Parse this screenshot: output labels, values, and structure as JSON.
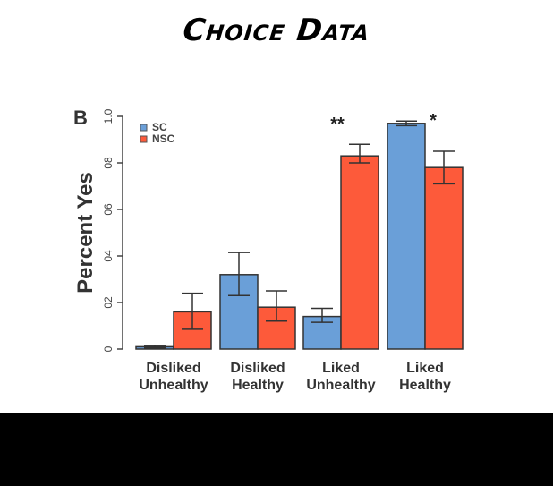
{
  "title": "Choice Data",
  "panel_label": "B",
  "chart_data": {
    "type": "bar",
    "title": "Choice Data",
    "xlabel": "",
    "ylabel": "Percent Yes",
    "ylim": [
      0,
      1.0
    ],
    "yticks": [
      "0",
      "0.2",
      "0.4",
      "0.6",
      "0.8",
      "1.0"
    ],
    "ytick_values": [
      0,
      0.2,
      0.4,
      0.6,
      0.8,
      1.0
    ],
    "grid": false,
    "legend_position": "top-left",
    "categories": [
      "Disliked Unhealthy",
      "Disliked Healthy",
      "Liked Unhealthy",
      "Liked Healthy"
    ],
    "category_lines": [
      [
        "Disliked",
        "Unhealthy"
      ],
      [
        "Disliked",
        "Healthy"
      ],
      [
        "Liked",
        "Unhealthy"
      ],
      [
        "Liked",
        "Healthy"
      ]
    ],
    "series": [
      {
        "name": "SC",
        "color": "#6a9fd8",
        "values": [
          0.01,
          0.32,
          0.14,
          0.97
        ],
        "error_low": [
          0.005,
          0.23,
          0.115,
          0.96
        ],
        "error_high": [
          0.015,
          0.415,
          0.175,
          0.98
        ]
      },
      {
        "name": "NSC",
        "color": "#fd5a3a",
        "values": [
          0.16,
          0.18,
          0.83,
          0.78
        ],
        "error_low": [
          0.085,
          0.12,
          0.8,
          0.71
        ],
        "error_high": [
          0.24,
          0.25,
          0.88,
          0.85
        ]
      }
    ],
    "annotations": [
      {
        "category": "Liked Unhealthy",
        "text": "**"
      },
      {
        "category": "Liked Healthy",
        "text": "*"
      }
    ]
  }
}
